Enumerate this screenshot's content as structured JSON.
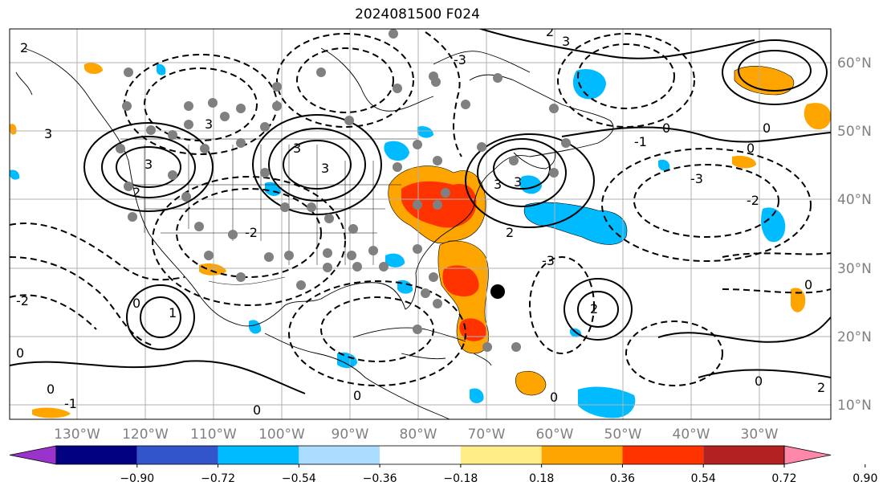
{
  "title": "2024081500 F024",
  "map": {
    "region": "North Atlantic / North America",
    "lat_labels": [
      "60°N",
      "50°N",
      "40°N",
      "30°N",
      "20°N",
      "10°N"
    ],
    "lon_labels": [
      "130°W",
      "120°W",
      "110°W",
      "100°W",
      "90°W",
      "80°W",
      "70°W",
      "60°W",
      "50°W",
      "40°W",
      "30°W"
    ],
    "contour_labels": [
      "3",
      "2",
      "1",
      "0",
      "-1",
      "-2",
      "-3"
    ],
    "grid": true
  },
  "colorbar": {
    "ticks": [
      "−0.90",
      "−0.72",
      "−0.54",
      "−0.36",
      "−0.18",
      "0.18",
      "0.36",
      "0.54",
      "0.72",
      "0.90"
    ],
    "colors": [
      "#9933cc",
      "#000080",
      "#3355cc",
      "#00bbff",
      "#aaddff",
      "#ffffff",
      "#ffee88",
      "#ffa500",
      "#ff3300",
      "#b22222",
      "#ff88aa"
    ],
    "extend": "both"
  }
}
